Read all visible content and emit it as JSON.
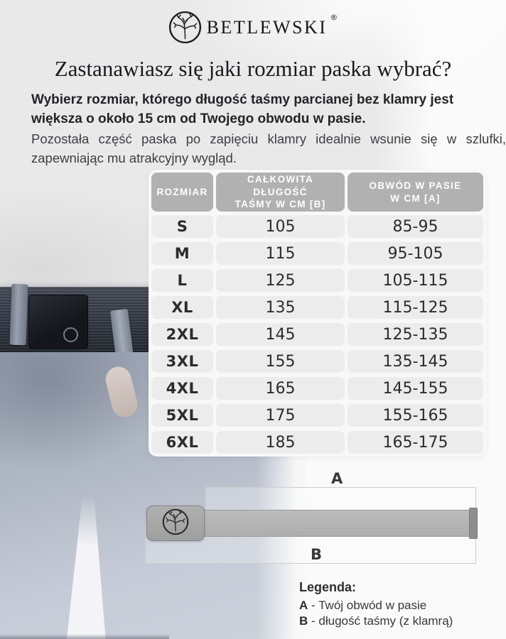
{
  "brand": {
    "name": "BETLEWSKI",
    "registered": "®"
  },
  "headline": "Zastanawiasz się jaki rozmiar paska wybrać?",
  "intro": {
    "bold": "Wybierz rozmiar, którego długość taśmy parcianej bez klamry jest większa o około 15 cm od Twojego obwodu w pasie.",
    "regular": "Pozostała część paska po zapięciu klamry idealnie wsunie się w szlufki, zapewniając mu atrakcyjny wygląd."
  },
  "size_table": {
    "headers": [
      "ROZMIAR",
      "CAŁKOWITA\nDŁUGOŚĆ\nTAŚMY W CM [B]",
      "OBWÓD W PASIE\nW CM [A]"
    ],
    "rows": [
      {
        "size": "S",
        "tape_length_cm": "105",
        "waist_cm": "85-95"
      },
      {
        "size": "M",
        "tape_length_cm": "115",
        "waist_cm": "95-105"
      },
      {
        "size": "L",
        "tape_length_cm": "125",
        "waist_cm": "105-115"
      },
      {
        "size": "XL",
        "tape_length_cm": "135",
        "waist_cm": "115-125"
      },
      {
        "size": "2XL",
        "tape_length_cm": "145",
        "waist_cm": "125-135"
      },
      {
        "size": "3XL",
        "tape_length_cm": "155",
        "waist_cm": "135-145"
      },
      {
        "size": "4XL",
        "tape_length_cm": "165",
        "waist_cm": "145-155"
      },
      {
        "size": "5XL",
        "tape_length_cm": "175",
        "waist_cm": "155-165"
      },
      {
        "size": "6XL",
        "tape_length_cm": "185",
        "waist_cm": "165-175"
      }
    ]
  },
  "diagram": {
    "label_a": "A",
    "label_b": "B"
  },
  "legend": {
    "title": "Legenda:",
    "items": [
      {
        "key": "A",
        "text": "- Twój obwód w pasie"
      },
      {
        "key": "B",
        "text": "- długość taśmy (z klamrą)"
      }
    ]
  },
  "colors": {
    "table_header_bg": "#b1b1b2",
    "table_cell_bg": "#ececec",
    "table_frame_bg": "#f8f8f9",
    "belt_photo_navy": "#343945",
    "jeans_blue_gray": "#b2b9c6",
    "text_dark": "#1b1b1f"
  }
}
